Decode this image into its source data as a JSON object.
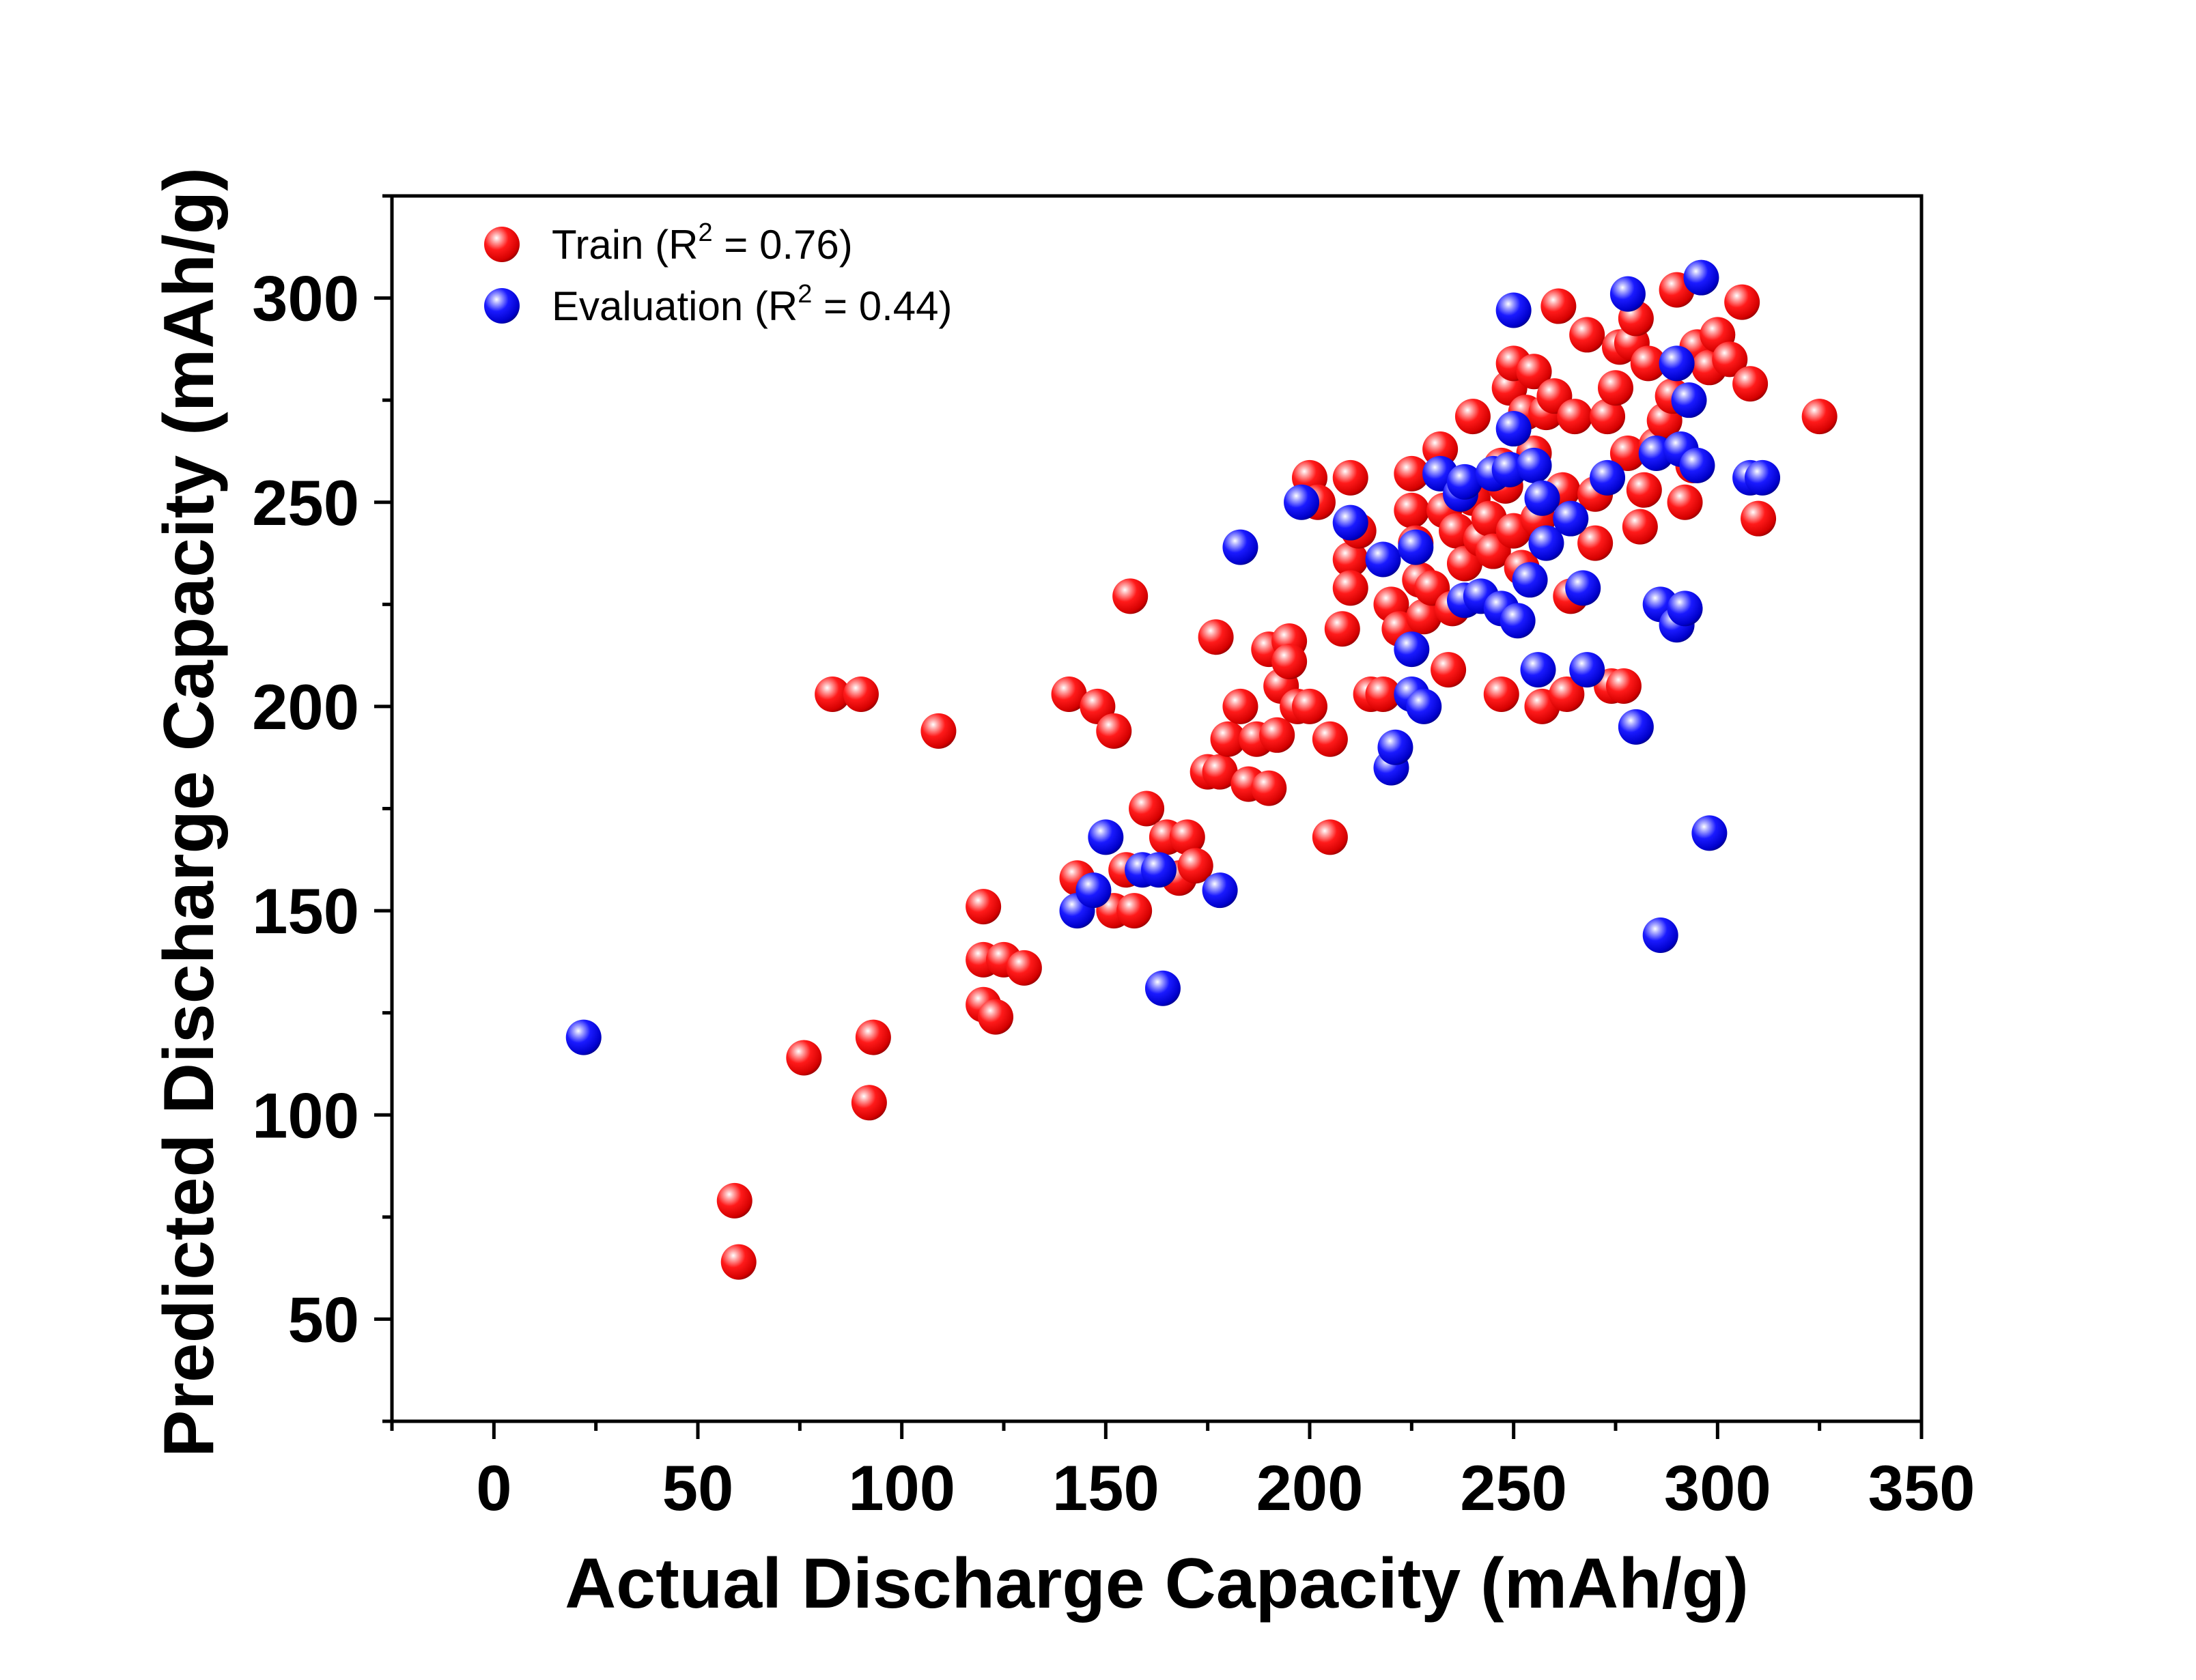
{
  "chart_data": {
    "type": "scatter",
    "title": "",
    "xlabel": "Actual Discharge Capacity (mAh/g)",
    "ylabel": "Predicted Discharge Capacity (mAh/g)",
    "xlim": [
      -25,
      350
    ],
    "ylim": [
      25,
      325
    ],
    "xticks": [
      0,
      50,
      100,
      150,
      200,
      250,
      300,
      350
    ],
    "yticks": [
      50,
      100,
      150,
      200,
      250,
      300
    ],
    "grid": false,
    "legend_position": "top-left",
    "colors": {
      "train": "#ff0000",
      "evaluation": "#0000ff"
    },
    "legend": [
      {
        "prefix": "Train (R",
        "sup": "2",
        "suffix": " = 0.76)",
        "color": "#ff0000"
      },
      {
        "prefix": "Evaluation (R",
        "sup": "2",
        "suffix": " = 0.44)",
        "color": "#0000ff"
      }
    ],
    "series": [
      {
        "name": "Train",
        "color": "#ff0000",
        "points": [
          [
            60,
            64
          ],
          [
            59,
            79
          ],
          [
            76,
            114
          ],
          [
            92,
            103
          ],
          [
            93,
            119
          ],
          [
            83,
            203
          ],
          [
            90,
            203
          ],
          [
            109,
            194
          ],
          [
            120,
            151
          ],
          [
            120,
            138
          ],
          [
            125,
            138
          ],
          [
            130,
            136
          ],
          [
            120,
            127
          ],
          [
            123,
            124
          ],
          [
            141,
            203
          ],
          [
            148,
            200
          ],
          [
            152,
            194
          ],
          [
            156,
            227
          ],
          [
            143,
            158
          ],
          [
            152,
            150
          ],
          [
            157,
            150
          ],
          [
            155,
            160
          ],
          [
            160,
            175
          ],
          [
            165,
            168
          ],
          [
            168,
            158
          ],
          [
            170,
            168
          ],
          [
            172,
            161
          ],
          [
            175,
            184
          ],
          [
            177,
            217
          ],
          [
            178,
            184
          ],
          [
            180,
            192
          ],
          [
            183,
            200
          ],
          [
            185,
            181
          ],
          [
            187,
            192
          ],
          [
            190,
            180
          ],
          [
            190,
            214
          ],
          [
            192,
            193
          ],
          [
            193,
            205
          ],
          [
            195,
            216
          ],
          [
            195,
            211
          ],
          [
            197,
            200
          ],
          [
            200,
            200
          ],
          [
            200,
            256
          ],
          [
            202,
            250
          ],
          [
            205,
            192
          ],
          [
            205,
            168
          ],
          [
            208,
            219
          ],
          [
            210,
            256
          ],
          [
            210,
            236
          ],
          [
            210,
            229
          ],
          [
            212,
            243
          ],
          [
            215,
            203
          ],
          [
            218,
            203
          ],
          [
            220,
            225
          ],
          [
            222,
            219
          ],
          [
            225,
            257
          ],
          [
            225,
            248
          ],
          [
            226,
            240
          ],
          [
            227,
            231
          ],
          [
            228,
            222
          ],
          [
            230,
            229
          ],
          [
            232,
            263
          ],
          [
            233,
            248
          ],
          [
            234,
            209
          ],
          [
            235,
            224
          ],
          [
            236,
            243
          ],
          [
            238,
            235
          ],
          [
            240,
            271
          ],
          [
            240,
            251
          ],
          [
            242,
            241
          ],
          [
            244,
            246
          ],
          [
            245,
            238
          ],
          [
            247,
            259
          ],
          [
            247,
            203
          ],
          [
            248,
            254
          ],
          [
            249,
            278
          ],
          [
            250,
            284
          ],
          [
            250,
            243
          ],
          [
            252,
            234
          ],
          [
            253,
            272
          ],
          [
            255,
            282
          ],
          [
            255,
            262
          ],
          [
            256,
            246
          ],
          [
            257,
            200
          ],
          [
            258,
            272
          ],
          [
            260,
            276
          ],
          [
            261,
            298
          ],
          [
            262,
            253
          ],
          [
            263,
            203
          ],
          [
            264,
            227
          ],
          [
            265,
            271
          ],
          [
            268,
            291
          ],
          [
            270,
            252
          ],
          [
            270,
            240
          ],
          [
            273,
            271
          ],
          [
            274,
            205
          ],
          [
            275,
            278
          ],
          [
            276,
            288
          ],
          [
            277,
            205
          ],
          [
            278,
            262
          ],
          [
            279,
            289
          ],
          [
            280,
            295
          ],
          [
            281,
            244
          ],
          [
            282,
            253
          ],
          [
            283,
            284
          ],
          [
            285,
            264
          ],
          [
            287,
            270
          ],
          [
            289,
            276
          ],
          [
            290,
            302
          ],
          [
            292,
            250
          ],
          [
            294,
            259
          ],
          [
            295,
            288
          ],
          [
            298,
            283
          ],
          [
            300,
            291
          ],
          [
            303,
            285
          ],
          [
            306,
            299
          ],
          [
            308,
            279
          ],
          [
            310,
            246
          ],
          [
            325,
            271
          ]
        ]
      },
      {
        "name": "Evaluation",
        "color": "#0000ff",
        "points": [
          [
            22,
            119
          ],
          [
            143,
            150
          ],
          [
            147,
            155
          ],
          [
            150,
            168
          ],
          [
            159,
            160
          ],
          [
            163,
            160
          ],
          [
            164,
            131
          ],
          [
            178,
            155
          ],
          [
            183,
            239
          ],
          [
            198,
            250
          ],
          [
            210,
            245
          ],
          [
            218,
            236
          ],
          [
            220,
            185
          ],
          [
            221,
            190
          ],
          [
            225,
            214
          ],
          [
            225,
            203
          ],
          [
            226,
            239
          ],
          [
            228,
            200
          ],
          [
            232,
            257
          ],
          [
            237,
            252
          ],
          [
            238,
            255
          ],
          [
            238,
            226
          ],
          [
            242,
            227
          ],
          [
            245,
            257
          ],
          [
            247,
            224
          ],
          [
            249,
            258
          ],
          [
            250,
            297
          ],
          [
            250,
            268
          ],
          [
            251,
            221
          ],
          [
            254,
            231
          ],
          [
            255,
            259
          ],
          [
            256,
            209
          ],
          [
            257,
            251
          ],
          [
            258,
            240
          ],
          [
            264,
            246
          ],
          [
            267,
            229
          ],
          [
            268,
            209
          ],
          [
            273,
            256
          ],
          [
            278,
            301
          ],
          [
            280,
            195
          ],
          [
            285,
            262
          ],
          [
            286,
            225
          ],
          [
            286,
            144
          ],
          [
            290,
            220
          ],
          [
            290,
            284
          ],
          [
            291,
            263
          ],
          [
            292,
            224
          ],
          [
            293,
            275
          ],
          [
            295,
            259
          ],
          [
            296,
            305
          ],
          [
            298,
            169
          ],
          [
            308,
            256
          ],
          [
            311,
            256
          ]
        ]
      }
    ]
  }
}
